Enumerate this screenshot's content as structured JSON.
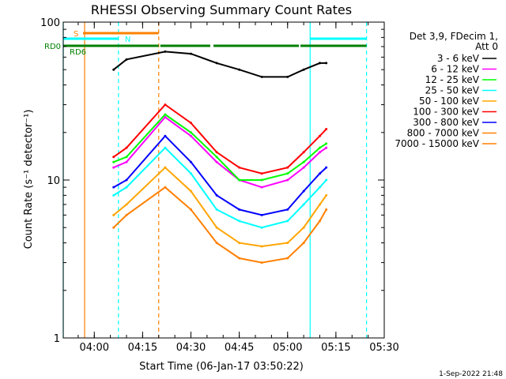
{
  "chart_data": {
    "type": "line",
    "title": "RHESSI Observing Summary Count Rates",
    "xlabel": "Start Time (06-Jan-17 03:50:22)",
    "ylabel": "Count Rate (s⁻¹ detector⁻¹)",
    "x_scale": "time",
    "x_range": [
      "03:50:22",
      "05:30:00"
    ],
    "x_ticks": [
      "04:00",
      "04:15",
      "04:30",
      "04:45",
      "05:00",
      "05:15",
      "05:30"
    ],
    "y_scale": "log",
    "ylim": [
      1,
      100
    ],
    "y_ticks": [
      "1",
      "10",
      "100"
    ],
    "legend": {
      "placement": "right",
      "header": [
        "Det 3,9, FDecim 1,",
        "Att 0"
      ]
    },
    "series": [
      {
        "name": "3 - 6 keV",
        "color": "#000000",
        "x": [
          "04:06",
          "04:10",
          "04:22",
          "04:30",
          "04:38",
          "04:45",
          "04:52",
          "05:00",
          "05:05",
          "05:10",
          "05:12"
        ],
        "values": [
          50,
          58,
          65,
          63,
          55,
          50,
          45,
          45,
          50,
          55,
          55
        ]
      },
      {
        "name": "6 - 12 keV",
        "color": "#ff00ff",
        "x": [
          "04:06",
          "04:10",
          "04:22",
          "04:30",
          "04:38",
          "04:45",
          "04:52",
          "05:00",
          "05:05",
          "05:10",
          "05:12"
        ],
        "values": [
          12,
          13,
          25,
          19,
          13,
          10,
          9,
          10,
          12,
          15,
          16
        ]
      },
      {
        "name": "12 - 25 keV",
        "color": "#00ff00",
        "x": [
          "04:06",
          "04:10",
          "04:22",
          "04:30",
          "04:38",
          "04:45",
          "04:52",
          "05:00",
          "05:05",
          "05:10",
          "05:12"
        ],
        "values": [
          13,
          14,
          26,
          20,
          14,
          10,
          10,
          11,
          13,
          16,
          17
        ]
      },
      {
        "name": "25 - 50 keV",
        "color": "#00ffff",
        "x": [
          "04:06",
          "04:10",
          "04:22",
          "04:30",
          "04:38",
          "04:45",
          "04:52",
          "05:00",
          "05:05",
          "05:10",
          "05:12"
        ],
        "values": [
          8,
          9,
          16,
          11,
          6.5,
          5.5,
          5,
          5.5,
          7,
          9,
          10
        ]
      },
      {
        "name": "50 - 100 keV",
        "color": "#ffa500",
        "x": [
          "04:06",
          "04:10",
          "04:22",
          "04:30",
          "04:38",
          "04:45",
          "04:52",
          "05:00",
          "05:05",
          "05:10",
          "05:12"
        ],
        "values": [
          6,
          7,
          12,
          8.5,
          5,
          4,
          3.8,
          4,
          5,
          7,
          8
        ]
      },
      {
        "name": "100 - 300 keV",
        "color": "#ff0000",
        "x": [
          "04:06",
          "04:10",
          "04:22",
          "04:30",
          "04:38",
          "04:45",
          "04:52",
          "05:00",
          "05:05",
          "05:10",
          "05:12"
        ],
        "values": [
          14,
          16,
          30,
          23,
          15,
          12,
          11,
          12,
          15,
          19,
          21
        ]
      },
      {
        "name": "300 - 800 keV",
        "color": "#0000ff",
        "x": [
          "04:06",
          "04:10",
          "04:22",
          "04:30",
          "04:38",
          "04:45",
          "04:52",
          "05:00",
          "05:05",
          "05:10",
          "05:12"
        ],
        "values": [
          9,
          10,
          19,
          13,
          8,
          6.5,
          6,
          6.5,
          8.5,
          11,
          12
        ]
      },
      {
        "name": "800 - 7000 keV",
        "color": "#ff8000",
        "x": [
          "04:06",
          "04:10",
          "04:22",
          "04:30",
          "04:38",
          "04:45",
          "04:52",
          "05:00",
          "05:05",
          "05:10",
          "05:12"
        ],
        "values": [
          5,
          6,
          9,
          6.5,
          4,
          3.2,
          3,
          3.2,
          4,
          5.5,
          6.5
        ]
      },
      {
        "name": "7000 - 15000 keV",
        "color": "#ff8000",
        "x": [],
        "values": []
      }
    ],
    "flags": [
      {
        "label": "S",
        "color": "#ff8000",
        "start": "03:56:30",
        "end": "04:20:00"
      },
      {
        "label": "N",
        "color": "#00ffff",
        "start": "03:50:22",
        "end": "04:07:30"
      },
      {
        "label": "N",
        "color": "#00ffff",
        "start": "05:07:00",
        "end": "05:24:30"
      },
      {
        "label": "RD0",
        "color": "#008000",
        "start": "03:50:22",
        "end": "04:20:00"
      },
      {
        "label": "RD0",
        "color": "#008000",
        "start": "04:20:30",
        "end": "04:36:00"
      },
      {
        "label": "RD0",
        "color": "#008000",
        "start": "04:37:00",
        "end": "05:03:30"
      },
      {
        "label": "RD0",
        "color": "#008000",
        "start": "05:04:00",
        "end": "05:24:30"
      },
      {
        "label": "RD6",
        "color": "#008000",
        "start": "",
        "end": ""
      }
    ],
    "vertical_markers": [
      {
        "time": "03:50:22",
        "color": "#00ffff",
        "style": "solid"
      },
      {
        "time": "03:57:00",
        "color": "#ff8000",
        "style": "solid"
      },
      {
        "time": "04:07:30",
        "color": "#00ffff",
        "style": "dashed"
      },
      {
        "time": "04:20:00",
        "color": "#ff8000",
        "style": "dashed"
      },
      {
        "time": "05:07:00",
        "color": "#00ffff",
        "style": "solid"
      },
      {
        "time": "05:24:30",
        "color": "#00ffff",
        "style": "dashed"
      }
    ],
    "grid": false
  },
  "footer": {
    "timestamp": "1-Sep-2022 21:48"
  }
}
